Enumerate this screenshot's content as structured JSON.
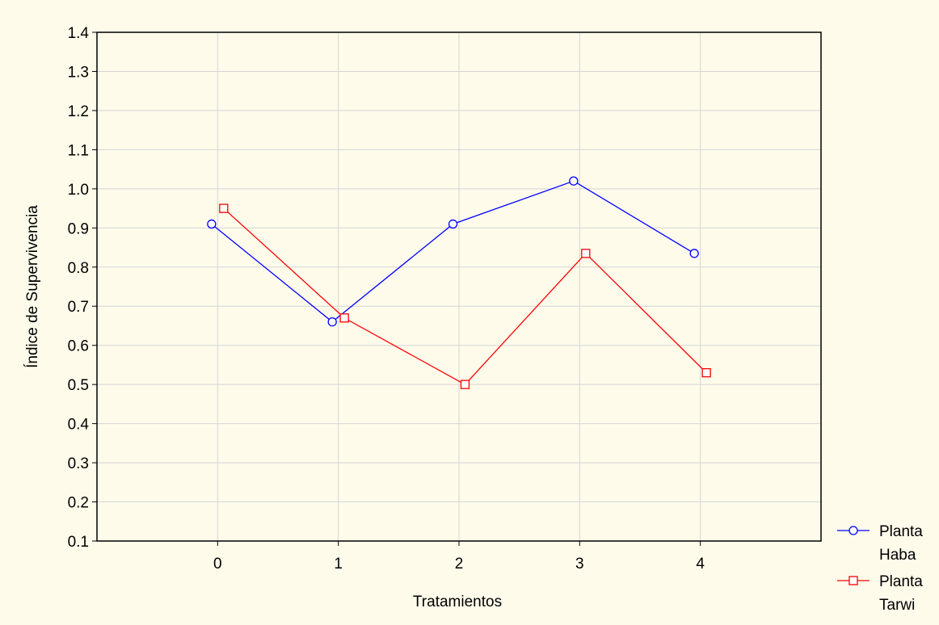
{
  "chart_data": {
    "type": "line",
    "title": "",
    "xlabel": "Tratamientos",
    "ylabel": "Índice de Supervivencia",
    "categories": [
      "0",
      "1",
      "2",
      "3",
      "4"
    ],
    "xlim": [
      -1,
      5
    ],
    "ylim": [
      0.1,
      1.4
    ],
    "yticks": [
      "0.1",
      "0.2",
      "0.3",
      "0.4",
      "0.5",
      "0.6",
      "0.7",
      "0.8",
      "0.9",
      "1.0",
      "1.1",
      "1.2",
      "1.3",
      "1.4"
    ],
    "grid": true,
    "legend_position": "bottom-right",
    "series": [
      {
        "name": "Planta Haba",
        "legend_lines": [
          "Planta",
          "Haba"
        ],
        "color": "#0000ff",
        "marker": "circle",
        "offset": -0.05,
        "values": [
          0.91,
          0.66,
          0.91,
          1.02,
          0.835
        ]
      },
      {
        "name": "Planta Tarwi",
        "legend_lines": [
          "Planta",
          "Tarwi"
        ],
        "color": "#ff0000",
        "marker": "square",
        "offset": 0.05,
        "values": [
          0.95,
          0.67,
          0.5,
          0.835,
          0.53
        ]
      }
    ]
  }
}
